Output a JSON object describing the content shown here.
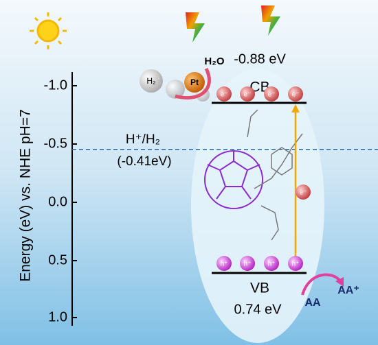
{
  "axis": {
    "label": "Energy (eV) vs. NHE pH=7",
    "ticks": [
      "-1.0",
      "-0.5",
      "0.0",
      "0.5",
      "1.0"
    ]
  },
  "levels": {
    "reference": {
      "label": "H⁺/H₂",
      "value": "(-0.41eV)"
    },
    "cb": {
      "label": "CB",
      "energy": "-0.88 eV"
    },
    "vb": {
      "label": "VB",
      "energy": "0.74 eV"
    }
  },
  "species": {
    "h2": "H₂",
    "pt": "Pt",
    "h2o": "H₂O",
    "electron": "e⁻",
    "hole": "h⁺",
    "aa": "AA",
    "aa_plus": "AA⁺"
  }
}
